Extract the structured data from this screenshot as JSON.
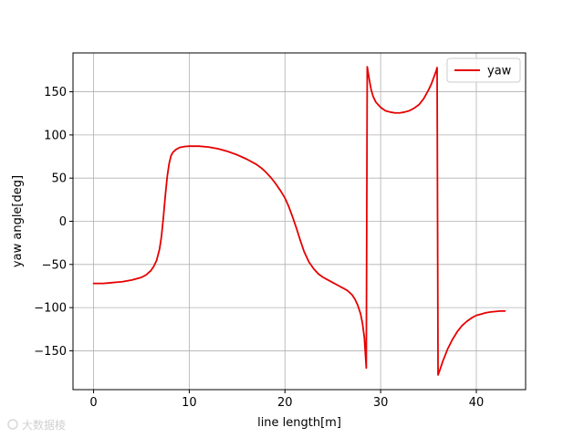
{
  "chart_data": {
    "type": "line",
    "title": "",
    "xlabel": "line length[m]",
    "ylabel": "yaw angle[deg]",
    "xlim": [
      -2.15,
      45.15
    ],
    "ylim": [
      -195,
      195
    ],
    "xticks": [
      0,
      10,
      20,
      30,
      40
    ],
    "yticks": [
      -150,
      -100,
      -50,
      0,
      50,
      100,
      150
    ],
    "xtick_labels": [
      "0",
      "10",
      "20",
      "30",
      "40"
    ],
    "ytick_labels": [
      "−150",
      "−100",
      "−50",
      "0",
      "50",
      "100",
      "150"
    ],
    "grid": true,
    "legend": {
      "placement": "top-right",
      "entries": [
        "yaw"
      ]
    },
    "series": [
      {
        "name": "yaw",
        "color": "#e60000",
        "segments": [
          {
            "x": [
              0,
              1,
              2,
              3,
              4,
              5,
              5.5,
              6,
              6.3,
              6.6,
              6.9,
              7.1,
              7.3,
              7.5,
              7.7,
              7.9,
              8.1,
              8.3,
              8.6,
              9,
              9.5,
              10,
              11,
              12,
              13,
              14,
              15,
              16,
              17,
              17.5,
              18,
              18.5,
              19,
              19.5,
              20,
              20.4,
              20.8,
              21.2,
              21.6,
              22,
              22.5,
              23,
              23.5,
              24,
              24.5,
              25,
              25.5,
              26,
              26.5,
              27,
              27.3,
              27.6,
              27.9,
              28.1,
              28.3,
              28.5
            ],
            "y": [
              -72,
              -72,
              -71,
              -70,
              -68,
              -65,
              -62,
              -57,
              -52,
              -45,
              -32,
              -17,
              5,
              30,
              52,
              67,
              76,
              80,
              83,
              85.5,
              86.5,
              87,
              87,
              86,
              84,
              81,
              77,
              72,
              66,
              62,
              57,
              51,
              44,
              36,
              27,
              17,
              5,
              -8,
              -22,
              -35,
              -47,
              -55,
              -61,
              -65,
              -68,
              -71,
              -74,
              -77,
              -80,
              -85,
              -90,
              -97,
              -107,
              -118,
              -135,
              -170
            ]
          },
          {
            "x": [
              28.6,
              28.7,
              28.85,
              29,
              29.2,
              29.5,
              30,
              30.5,
              31,
              31.5,
              32,
              32.5,
              33,
              33.5,
              34,
              34.5,
              35,
              35.3,
              35.6,
              35.8,
              35.9
            ],
            "y": [
              179,
              172,
              162,
              153,
              145,
              138,
              132,
              128,
              126.5,
              125.5,
              125.5,
              126.5,
              128,
              131,
              135,
              142,
              152,
              159,
              168,
              174,
              178
            ]
          },
          {
            "x": [
              36,
              36.2,
              36.5,
              37,
              37.5,
              38,
              38.5,
              39,
              39.5,
              40,
              40.5,
              41,
              41.5,
              42,
              42.5,
              43
            ],
            "y": [
              -178,
              -172,
              -162,
              -148,
              -137,
              -128,
              -121,
              -116,
              -112,
              -109,
              -107.5,
              -106,
              -105,
              -104.5,
              -104,
              -104
            ]
          }
        ]
      }
    ]
  },
  "watermark": {
    "text": "大数据棱"
  }
}
